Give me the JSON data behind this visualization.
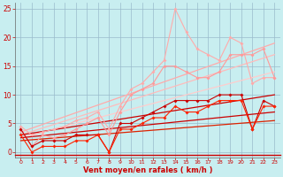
{
  "xlabel": "Vent moyen/en rafales ( km/h )",
  "xlim": [
    -0.5,
    23.5
  ],
  "ylim": [
    -1,
    26
  ],
  "yticks": [
    0,
    5,
    10,
    15,
    20,
    25
  ],
  "xticks": [
    0,
    1,
    2,
    3,
    4,
    5,
    6,
    7,
    8,
    9,
    10,
    11,
    12,
    13,
    14,
    15,
    16,
    17,
    18,
    19,
    20,
    21,
    22,
    23
  ],
  "bg_color": "#c8eef0",
  "grid_color": "#99bbcc",
  "lines": [
    {
      "x": [
        0,
        1,
        2,
        3,
        4,
        5,
        6,
        7,
        8,
        9,
        10,
        11,
        12,
        13,
        14,
        15,
        16,
        17,
        18,
        19,
        20,
        21,
        22,
        23
      ],
      "y": [
        4.5,
        3,
        3.5,
        4,
        4.5,
        5.5,
        6,
        7,
        4,
        8,
        11,
        12,
        14,
        16,
        25,
        21,
        18,
        17,
        16,
        20,
        19,
        12,
        13,
        13
      ],
      "color": "#ffaaaa",
      "lw": 0.8,
      "marker": "D",
      "ms": 2.0
    },
    {
      "x": [
        0,
        1,
        2,
        3,
        4,
        5,
        6,
        7,
        8,
        9,
        10,
        11,
        12,
        13,
        14,
        15,
        16,
        17,
        18,
        19,
        20,
        21,
        22,
        23
      ],
      "y": [
        4,
        1,
        3,
        2.5,
        3,
        4,
        5,
        6,
        3,
        7,
        10,
        11,
        12,
        15,
        15,
        14,
        13,
        13,
        14,
        17,
        17,
        17,
        18,
        13
      ],
      "color": "#ff9999",
      "lw": 0.8,
      "marker": "D",
      "ms": 2.0
    },
    {
      "x": [
        0,
        1,
        2,
        3,
        4,
        5,
        6,
        7,
        8,
        9,
        10,
        11,
        12,
        13,
        14,
        15,
        16,
        17,
        18,
        19,
        20,
        21,
        22,
        23
      ],
      "y": [
        4,
        1,
        2,
        2,
        2,
        3,
        3,
        3,
        0,
        5,
        5,
        6,
        7,
        8,
        9,
        9,
        9,
        9,
        10,
        10,
        10,
        4,
        9,
        8
      ],
      "color": "#cc0000",
      "lw": 0.8,
      "marker": "D",
      "ms": 2.0
    },
    {
      "x": [
        0,
        1,
        2,
        3,
        4,
        5,
        6,
        7,
        8,
        9,
        10,
        11,
        12,
        13,
        14,
        15,
        16,
        17,
        18,
        19,
        20,
        21,
        22,
        23
      ],
      "y": [
        3,
        0,
        1,
        1,
        1,
        2,
        2,
        3,
        0,
        4,
        4,
        5,
        6,
        6,
        8,
        7,
        7,
        8,
        9,
        9,
        9,
        4,
        8,
        8
      ],
      "color": "#ff2200",
      "lw": 0.8,
      "marker": "D",
      "ms": 2.0
    },
    {
      "x": [
        0,
        23
      ],
      "y": [
        3.5,
        19
      ],
      "color": "#ffaaaa",
      "lw": 0.9,
      "marker": null,
      "ms": 0
    },
    {
      "x": [
        0,
        23
      ],
      "y": [
        3,
        17
      ],
      "color": "#ffbbbb",
      "lw": 0.9,
      "marker": null,
      "ms": 0
    },
    {
      "x": [
        0,
        23
      ],
      "y": [
        2.5,
        14
      ],
      "color": "#ffcccc",
      "lw": 0.9,
      "marker": null,
      "ms": 0
    },
    {
      "x": [
        0,
        23
      ],
      "y": [
        3,
        10
      ],
      "color": "#cc0000",
      "lw": 0.9,
      "marker": null,
      "ms": 0
    },
    {
      "x": [
        0,
        23
      ],
      "y": [
        2.5,
        7
      ],
      "color": "#cc0000",
      "lw": 0.9,
      "marker": null,
      "ms": 0
    },
    {
      "x": [
        0,
        23
      ],
      "y": [
        2,
        5.5
      ],
      "color": "#dd2200",
      "lw": 0.9,
      "marker": null,
      "ms": 0
    }
  ]
}
